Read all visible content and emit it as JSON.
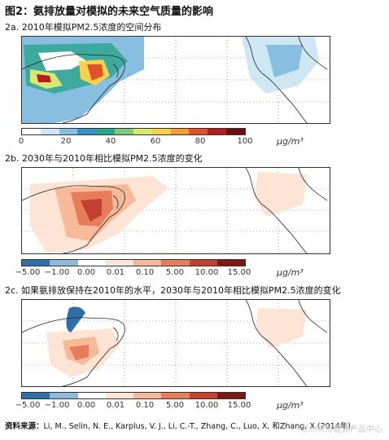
{
  "figure_title": "图2：氨排放量对模拟的未来空气质量的影响",
  "panel_a": {
    "label": "2a. 2010年模拟PM2.5浓度的空间分布",
    "ticks": [
      "0",
      "20",
      "40",
      "60",
      "80",
      "100"
    ],
    "unit": "μg/m³",
    "colors": [
      "#ffffff",
      "#cfe6f3",
      "#88bfe0",
      "#3d8fc9",
      "#2ca58d",
      "#7fc97f",
      "#d9e86e",
      "#f7d14b",
      "#f39a3a",
      "#e0502a",
      "#b51e21",
      "#6e0c14"
    ]
  },
  "panel_b": {
    "label": "2b. 2030年与2010年相比模拟PM2.5浓度的变化",
    "ticks": [
      "−5.00",
      "−1.00",
      "0.00",
      "0.01",
      "0.10",
      "5.00",
      "10.00",
      "15.00"
    ],
    "unit": "μg/m³",
    "colors": [
      "#2f6fa8",
      "#8fb9da",
      "#ffffff",
      "#fde4d4",
      "#f6b99a",
      "#e57c5b",
      "#c2412f",
      "#7d1714"
    ]
  },
  "panel_c": {
    "label": "2c. 如果氨排放保持在2010年的水平，2030年与2010年相比模拟PM2.5浓度的变化",
    "ticks": [
      "−5.00",
      "−1.00",
      "0.00",
      "0.01",
      "0.10",
      "5.00",
      "10.00",
      "15.00"
    ],
    "unit": "μg/m³"
  },
  "source": {
    "label": "资料来源：",
    "text": "Li, M., Selin, N. E., Karplus, V. J., Li, C.-T., Zhang, C., Luo, X, 和Zhang, X (2014年)."
  },
  "watermark": "兰州天际能源产品中心"
}
